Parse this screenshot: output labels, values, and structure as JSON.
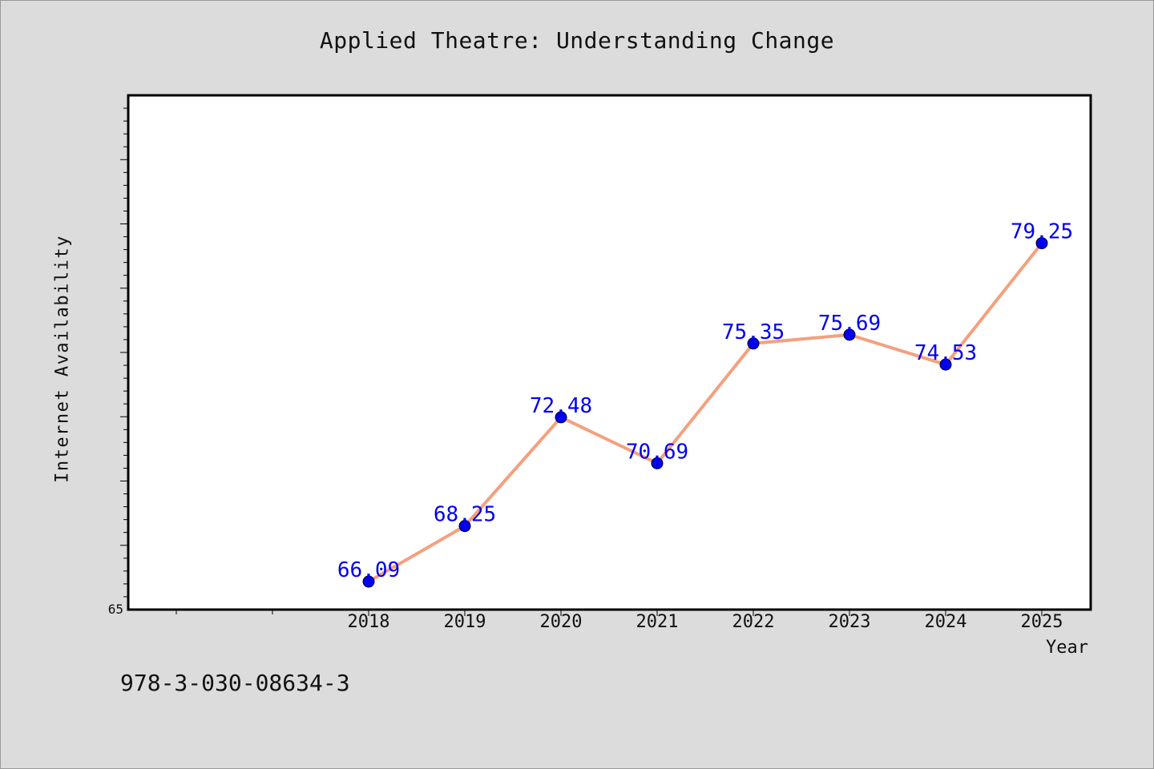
{
  "chart_data": {
    "type": "line",
    "title": "Applied Theatre: Understanding Change",
    "xlabel": "Year",
    "ylabel": "Internet Availability",
    "categories": [
      "2018",
      "2019",
      "2020",
      "2021",
      "2022",
      "2023",
      "2024",
      "2025"
    ],
    "series": [
      {
        "values": [
          66.09,
          68.25,
          72.48,
          70.69,
          75.35,
          75.69,
          74.53,
          79.25
        ]
      }
    ],
    "data_labels": [
      "66.09",
      "68.25",
      "72.48",
      "70.69",
      "75.35",
      "75.69",
      "74.53",
      "79.25"
    ],
    "y_tick_labels": [
      "65"
    ],
    "ylim": [
      65,
      85
    ],
    "grid": false,
    "line_color": "#f4a07e",
    "marker_color": "#0000ee",
    "label_color": "#0000ee"
  },
  "footer": {
    "isbn": "978-3-030-08634-3"
  }
}
